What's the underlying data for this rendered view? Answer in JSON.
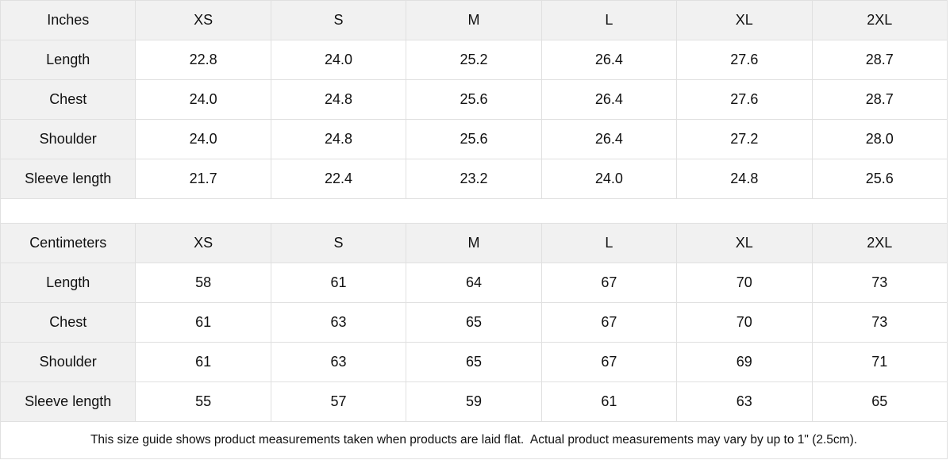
{
  "tables": [
    {
      "id": "inches",
      "unit_label": "Inches",
      "columns": [
        "XS",
        "S",
        "M",
        "L",
        "XL",
        "2XL"
      ],
      "rows": [
        {
          "label": "Length",
          "values": [
            "22.8",
            "24.0",
            "25.2",
            "26.4",
            "27.6",
            "28.7"
          ]
        },
        {
          "label": "Chest",
          "values": [
            "24.0",
            "24.8",
            "25.6",
            "26.4",
            "27.6",
            "28.7"
          ]
        },
        {
          "label": "Shoulder",
          "values": [
            "24.0",
            "24.8",
            "25.6",
            "26.4",
            "27.2",
            "28.0"
          ]
        },
        {
          "label": "Sleeve length",
          "values": [
            "21.7",
            "22.4",
            "23.2",
            "24.0",
            "24.8",
            "25.6"
          ]
        }
      ]
    },
    {
      "id": "centimeters",
      "unit_label": "Centimeters",
      "columns": [
        "XS",
        "S",
        "M",
        "L",
        "XL",
        "2XL"
      ],
      "rows": [
        {
          "label": "Length",
          "values": [
            "58",
            "61",
            "64",
            "67",
            "70",
            "73"
          ]
        },
        {
          "label": "Chest",
          "values": [
            "61",
            "63",
            "65",
            "67",
            "70",
            "73"
          ]
        },
        {
          "label": "Shoulder",
          "values": [
            "61",
            "63",
            "65",
            "67",
            "69",
            "71"
          ]
        },
        {
          "label": "Sleeve length",
          "values": [
            "55",
            "57",
            "59",
            "61",
            "63",
            "65"
          ]
        }
      ]
    }
  ],
  "note": "This size guide shows product measurements taken when products are laid flat.  Actual product measurements may vary by up to 1\" (2.5cm).",
  "colors": {
    "header_bg": "#f1f1f1",
    "border": "#e0e0e0",
    "text": "#111111",
    "background": "#ffffff"
  }
}
